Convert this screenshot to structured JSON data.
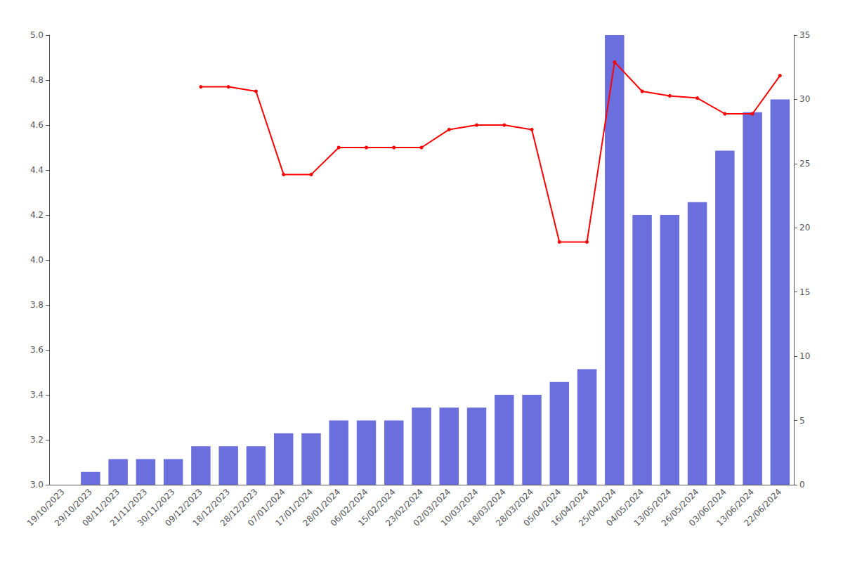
{
  "chart_data": {
    "type": "bar",
    "categories": [
      "19/10/2023",
      "29/10/2023",
      "08/11/2023",
      "21/11/2023",
      "30/11/2023",
      "09/12/2023",
      "18/12/2023",
      "28/12/2023",
      "07/01/2024",
      "17/01/2024",
      "28/01/2024",
      "06/02/2024",
      "15/02/2024",
      "23/02/2024",
      "02/03/2024",
      "10/03/2024",
      "18/03/2024",
      "28/03/2024",
      "05/04/2024",
      "16/04/2024",
      "25/04/2024",
      "04/05/2024",
      "13/05/2024",
      "26/05/2024",
      "03/06/2024",
      "13/06/2024",
      "22/06/2024"
    ],
    "series": [
      {
        "type": "bar",
        "color": "#6B6FDD",
        "axis": "y2",
        "values": [
          0,
          1,
          2,
          2,
          2,
          3,
          3,
          3,
          4,
          4,
          5,
          5,
          5,
          6,
          6,
          6,
          7,
          7,
          8,
          9,
          35,
          21,
          21,
          22,
          26,
          29,
          30
        ]
      },
      {
        "type": "line",
        "color": "#FF0000",
        "marker": "circle",
        "values": [
          null,
          null,
          null,
          null,
          null,
          4.77,
          4.77,
          4.75,
          4.38,
          4.38,
          4.5,
          4.5,
          4.5,
          4.5,
          4.58,
          4.6,
          4.6,
          4.58,
          4.08,
          4.08,
          4.88,
          4.75,
          4.73,
          4.72,
          4.65,
          4.65,
          4.82
        ]
      }
    ],
    "ylim": [
      3.0,
      5.0
    ],
    "yticks": [
      {
        "value": 3.0,
        "label": "3.0"
      },
      3.2,
      3.4,
      3.6,
      3.8,
      {
        "value": 4.0,
        "label": "4.0"
      },
      4.2,
      4.4,
      4.6,
      4.8,
      {
        "value": 5.0,
        "label": "5.0"
      }
    ],
    "y2lim": [
      0,
      35
    ],
    "y2ticks": [
      0,
      5,
      10,
      15,
      20,
      25,
      30,
      35
    ],
    "grid": false
  }
}
